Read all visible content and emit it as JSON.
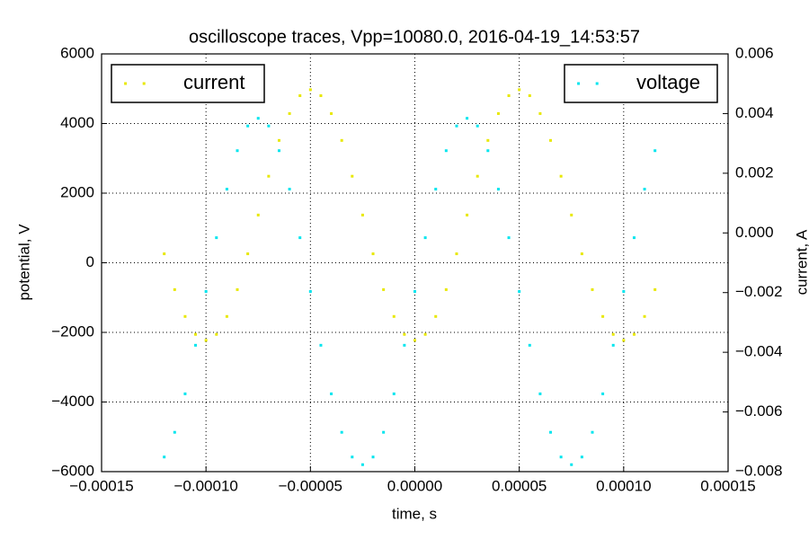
{
  "chart_data": {
    "type": "scatter",
    "title": "oscilloscope traces, Vpp=10080.0, 2016-04-19_14:53:57",
    "xlabel": "time, s",
    "ylabel": "potential, V",
    "y2label": "current, A",
    "grid": true,
    "x": [
      -0.00012,
      -0.000115,
      -0.00011,
      -0.000105,
      -0.0001,
      -9.5e-05,
      -9e-05,
      -8.5e-05,
      -8e-05,
      -7.5e-05,
      -7e-05,
      -6.5e-05,
      -6e-05,
      -5.5e-05,
      -5e-05,
      -4.5e-05,
      -4e-05,
      -3.5e-05,
      -3e-05,
      -2.5e-05,
      -2e-05,
      -1.5e-05,
      -1e-05,
      -5e-06,
      0,
      5e-06,
      1e-05,
      1.5e-05,
      2e-05,
      2.5e-05,
      3e-05,
      3.5e-05,
      4e-05,
      4.5e-05,
      5e-05,
      5.5e-05,
      6e-05,
      6.5e-05,
      7e-05,
      7.5e-05,
      8e-05,
      8.5e-05,
      9e-05,
      9.5e-05,
      0.0001,
      0.000105,
      0.00011,
      0.000115
    ],
    "series": [
      {
        "name": "current",
        "color": "#e8e800",
        "axis": "y2",
        "legend": "upper left",
        "values": [
          -0.0007,
          -0.0019,
          -0.0028,
          -0.0034,
          -0.0036,
          -0.0034,
          -0.0028,
          -0.0019,
          -0.0007,
          0.0006,
          0.0019,
          0.0031,
          0.004,
          0.0046,
          0.0048,
          0.0046,
          0.004,
          0.0031,
          0.0019,
          0.0006,
          -0.0007,
          -0.0019,
          -0.0028,
          -0.0034,
          -0.0036,
          -0.0034,
          -0.0028,
          -0.0019,
          -0.0007,
          0.0006,
          0.0019,
          0.0031,
          0.004,
          0.0046,
          0.0048,
          0.0046,
          0.004,
          0.0031,
          0.0019,
          0.0006,
          -0.0007,
          -0.0019,
          -0.0028,
          -0.0034,
          -0.0036,
          -0.0034,
          -0.0028,
          -0.0019
        ]
      },
      {
        "name": "voltage",
        "color": "#00e5ee",
        "axis": "y",
        "legend": "upper right",
        "values": [
          -5580,
          -4870,
          -3765,
          -2370,
          -825,
          720,
          2115,
          3220,
          3930,
          4150,
          3930,
          3220,
          2115,
          720,
          -825,
          -2370,
          -3765,
          -4870,
          -5580,
          -5800,
          -5580,
          -4870,
          -3765,
          -2370,
          -825,
          720,
          2115,
          3220,
          3930,
          4150,
          3930,
          3220,
          2115,
          720,
          -825,
          -2370,
          -3765,
          -4870,
          -5580,
          -5800,
          -5580,
          -4870,
          -3765,
          -2370,
          -825,
          720,
          2115,
          3220
        ]
      }
    ],
    "xlim": [
      -0.00015,
      0.00015
    ],
    "xticks": [
      {
        "value": -0.00015,
        "label": "−0.00015"
      },
      {
        "value": -0.0001,
        "label": "−0.00010"
      },
      {
        "value": -5e-05,
        "label": "−0.00005"
      },
      {
        "value": 0,
        "label": "0.00000"
      },
      5e-05,
      {
        "value": 0.0001,
        "label": "0.00010"
      },
      0.00015
    ],
    "ylim": [
      -6000,
      6000
    ],
    "yticks": [
      {
        "value": -6000,
        "label": "−6000"
      },
      {
        "value": -4000,
        "label": "−4000"
      },
      {
        "value": -2000,
        "label": "−2000"
      },
      0,
      2000,
      4000,
      6000
    ],
    "y2lim": [
      -0.008,
      0.006
    ],
    "y2ticks": [
      {
        "value": -0.008,
        "label": "−0.008"
      },
      {
        "value": -0.006,
        "label": "−0.006"
      },
      {
        "value": -0.004,
        "label": "−0.004"
      },
      {
        "value": -0.002,
        "label": "−0.002"
      },
      {
        "value": 0,
        "label": "0.000"
      },
      0.002,
      0.004,
      0.006
    ]
  }
}
